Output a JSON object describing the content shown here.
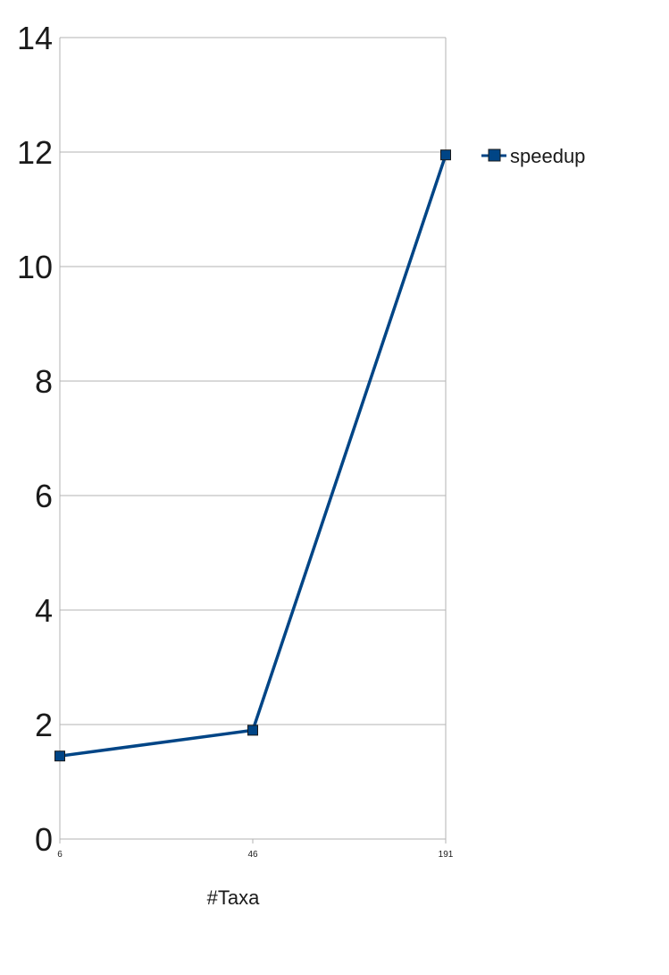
{
  "chart_data": {
    "type": "line",
    "title": "",
    "xlabel": "#Taxa",
    "ylabel": "",
    "categories": [
      "6",
      "46",
      "191"
    ],
    "series": [
      {
        "name": "speedup",
        "values": [
          1.45,
          1.9,
          11.95
        ],
        "color": "#004586"
      }
    ],
    "yticks": [
      "0",
      "2",
      "4",
      "6",
      "8",
      "10",
      "12",
      "14"
    ],
    "ylim": [
      0,
      14
    ],
    "grid": true,
    "legend": "right",
    "colors": {
      "line": "#004586",
      "grid": "#b3b3b3",
      "axis": "#b3b3b3"
    }
  }
}
